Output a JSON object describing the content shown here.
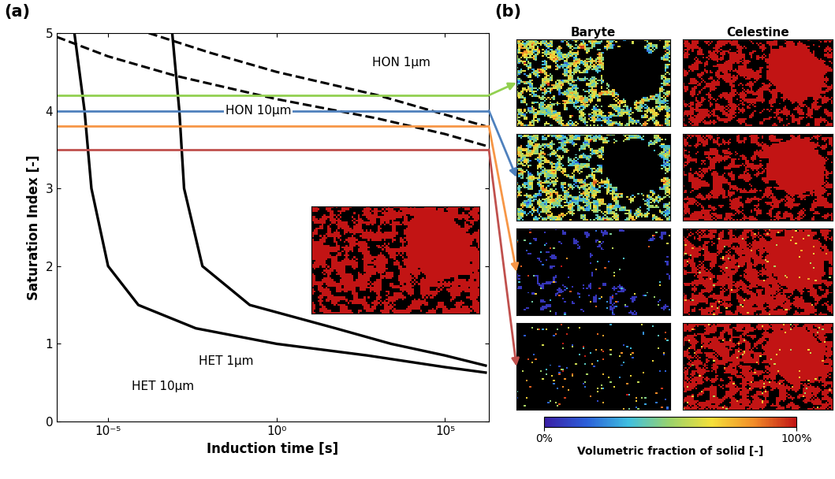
{
  "chart_data": {
    "type": "line",
    "xlabel": "Induction time [s]",
    "ylabel": "Saturation Index [-]",
    "log": "x",
    "xlim": [
      3e-07,
      2000000
    ],
    "ylim": [
      0,
      5
    ],
    "xticks": [
      {
        "value": 1e-05,
        "label": "10⁻⁵"
      },
      {
        "value": 1,
        "label": "10⁰"
      },
      {
        "value": 100000,
        "label": "10⁵"
      }
    ],
    "yticks": [
      0,
      1,
      2,
      3,
      4,
      5
    ],
    "series": [
      {
        "name": "HON 1μm",
        "color": "#000000",
        "line_style": "dashed",
        "x": [
          0.00016,
          0.01,
          1,
          1000,
          100000,
          1600000
        ],
        "values": [
          5.0,
          4.75,
          4.5,
          4.2,
          3.95,
          3.8
        ]
      },
      {
        "name": "HON 10μm",
        "color": "#000000",
        "line_style": "dashed",
        "x": [
          3e-07,
          1e-05,
          0.001,
          1,
          1000,
          100000,
          1600000
        ],
        "values": [
          4.95,
          4.7,
          4.45,
          4.15,
          3.9,
          3.7,
          3.55
        ]
      },
      {
        "name": "HET 1μm",
        "color": "#000000",
        "line_style": "solid",
        "x": [
          0.0008,
          0.0013,
          0.0018,
          0.0063,
          0.16,
          56,
          2500,
          100000,
          1600000
        ],
        "values": [
          5.0,
          4.0,
          3.0,
          2.0,
          1.5,
          1.2,
          1.0,
          0.85,
          0.72
        ]
      },
      {
        "name": "HET 10μm",
        "color": "#000000",
        "line_style": "solid",
        "x": [
          1e-06,
          2e-06,
          3.2e-06,
          1e-05,
          7.9e-05,
          0.004,
          1,
          500,
          100000,
          1600000
        ],
        "values": [
          5.0,
          4.0,
          3.0,
          2.0,
          1.5,
          1.2,
          1.0,
          0.85,
          0.7,
          0.63
        ]
      }
    ],
    "levels": [
      {
        "value": 4.2,
        "color": "#92d050"
      },
      {
        "value": 4.0,
        "color": "#4f81bd"
      },
      {
        "value": 3.8,
        "color": "#f79646"
      },
      {
        "value": 3.5,
        "color": "#c0504d"
      }
    ]
  },
  "panel_labels": [
    "(a)",
    "(b)"
  ],
  "image_grid": {
    "columns": [
      "Baryte",
      "Celestine"
    ],
    "colorbar": {
      "label": "Volumetric fraction of solid [-]",
      "range": [
        0,
        100
      ],
      "ticks": [
        {
          "value": 0,
          "label": "0%"
        },
        {
          "value": 100,
          "label": "100%"
        }
      ]
    }
  }
}
